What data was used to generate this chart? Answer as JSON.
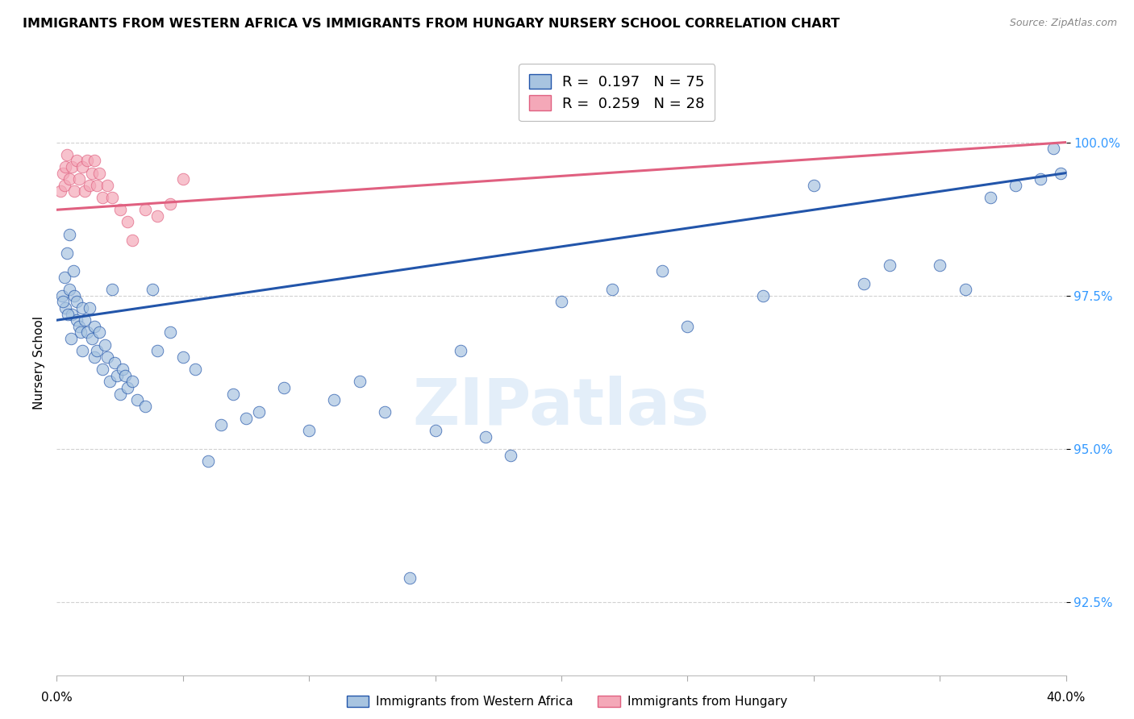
{
  "title": "IMMIGRANTS FROM WESTERN AFRICA VS IMMIGRANTS FROM HUNGARY NURSERY SCHOOL CORRELATION CHART",
  "source": "Source: ZipAtlas.com",
  "ylabel": "Nursery School",
  "yticks": [
    92.5,
    95.0,
    97.5,
    100.0
  ],
  "ytick_labels": [
    "92.5%",
    "95.0%",
    "97.5%",
    "100.0%"
  ],
  "xlim": [
    0.0,
    40.0
  ],
  "ylim": [
    91.3,
    101.5
  ],
  "blue_R": 0.197,
  "blue_N": 75,
  "pink_R": 0.259,
  "pink_N": 28,
  "blue_color": "#a8c4e0",
  "pink_color": "#f4a8b8",
  "line_blue": "#2255aa",
  "line_pink": "#e06080",
  "legend_label_blue": "Immigrants from Western Africa",
  "legend_label_pink": "Immigrants from Hungary",
  "blue_x": [
    0.2,
    0.3,
    0.35,
    0.4,
    0.5,
    0.5,
    0.6,
    0.65,
    0.7,
    0.8,
    0.8,
    0.9,
    0.95,
    1.0,
    1.0,
    1.1,
    1.2,
    1.3,
    1.4,
    1.5,
    1.5,
    1.6,
    1.7,
    1.8,
    1.9,
    2.0,
    2.1,
    2.2,
    2.3,
    2.4,
    2.5,
    2.6,
    2.7,
    2.8,
    3.0,
    3.2,
    3.5,
    3.8,
    4.0,
    4.5,
    5.0,
    5.5,
    6.0,
    6.5,
    7.0,
    7.5,
    8.0,
    9.0,
    10.0,
    11.0,
    12.0,
    13.0,
    14.0,
    15.0,
    16.0,
    17.0,
    18.0,
    20.0,
    22.0,
    24.0,
    25.0,
    28.0,
    30.0,
    32.0,
    33.0,
    35.0,
    36.0,
    37.0,
    38.0,
    39.0,
    39.5,
    39.8,
    0.25,
    0.45,
    0.55
  ],
  "blue_y": [
    97.5,
    97.8,
    97.3,
    98.2,
    97.6,
    98.5,
    97.2,
    97.9,
    97.5,
    97.4,
    97.1,
    97.0,
    96.9,
    97.3,
    96.6,
    97.1,
    96.9,
    97.3,
    96.8,
    97.0,
    96.5,
    96.6,
    96.9,
    96.3,
    96.7,
    96.5,
    96.1,
    97.6,
    96.4,
    96.2,
    95.9,
    96.3,
    96.2,
    96.0,
    96.1,
    95.8,
    95.7,
    97.6,
    96.6,
    96.9,
    96.5,
    96.3,
    94.8,
    95.4,
    95.9,
    95.5,
    95.6,
    96.0,
    95.3,
    95.8,
    96.1,
    95.6,
    92.9,
    95.3,
    96.6,
    95.2,
    94.9,
    97.4,
    97.6,
    97.9,
    97.0,
    97.5,
    99.3,
    97.7,
    98.0,
    98.0,
    97.6,
    99.1,
    99.3,
    99.4,
    99.9,
    99.5,
    97.4,
    97.2,
    96.8
  ],
  "pink_x": [
    0.15,
    0.25,
    0.3,
    0.35,
    0.4,
    0.5,
    0.6,
    0.7,
    0.8,
    0.9,
    1.0,
    1.1,
    1.2,
    1.3,
    1.4,
    1.5,
    1.6,
    1.7,
    1.8,
    2.0,
    2.2,
    2.5,
    2.8,
    3.0,
    3.5,
    4.0,
    4.5,
    5.0
  ],
  "pink_y": [
    99.2,
    99.5,
    99.3,
    99.6,
    99.8,
    99.4,
    99.6,
    99.2,
    99.7,
    99.4,
    99.6,
    99.2,
    99.7,
    99.3,
    99.5,
    99.7,
    99.3,
    99.5,
    99.1,
    99.3,
    99.1,
    98.9,
    98.7,
    98.4,
    98.9,
    98.8,
    99.0,
    99.4
  ],
  "blue_line_x0": 0.0,
  "blue_line_y0": 97.1,
  "blue_line_x1": 40.0,
  "blue_line_y1": 99.5,
  "pink_line_x0": 0.0,
  "pink_line_y0": 98.9,
  "pink_line_x1": 40.0,
  "pink_line_y1": 100.0,
  "watermark": "ZIPatlas",
  "title_fontsize": 11.5,
  "axis_color": "#3399ff"
}
